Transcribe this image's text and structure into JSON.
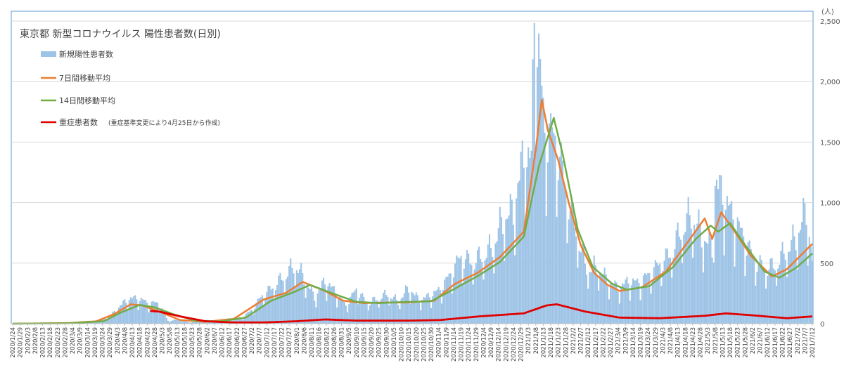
{
  "chart_data": {
    "type": "bar+line",
    "title": "東京都 新型コロナウイルス 陽性患者数(日別)",
    "y_unit": "(人)",
    "ylim": [
      0,
      2500
    ],
    "ytick_values": [
      0,
      500,
      1000,
      1500,
      2000,
      2500
    ],
    "ytick_labels": [
      "0",
      "500",
      "1,000",
      "1,500",
      "2,000",
      "2,500"
    ],
    "x_start": "2020-01-24",
    "x_end": "2021-07-12",
    "x_tick_labels": [
      "2020/1/24",
      "2020/1/29",
      "2020/2/3",
      "2020/2/8",
      "2020/2/13",
      "2020/2/18",
      "2020/2/23",
      "2020/2/28",
      "2020/3/4",
      "2020/3/9",
      "2020/3/14",
      "2020/3/19",
      "2020/3/24",
      "2020/3/29",
      "2020/4/3",
      "2020/4/8",
      "2020/4/13",
      "2020/4/18",
      "2020/4/23",
      "2020/4/28",
      "2020/5/3",
      "2020/5/8",
      "2020/5/13",
      "2020/5/18",
      "2020/5/23",
      "2020/5/28",
      "2020/6/2",
      "2020/6/7",
      "2020/6/12",
      "2020/6/17",
      "2020/6/22",
      "2020/6/27",
      "2020/7/2",
      "2020/7/7",
      "2020/7/12",
      "2020/7/17",
      "2020/7/22",
      "2020/7/27",
      "2020/8/1",
      "2020/8/6",
      "2020/8/11",
      "2020/8/16",
      "2020/8/21",
      "2020/8/26",
      "2020/8/31",
      "2020/9/5",
      "2020/9/10",
      "2020/9/15",
      "2020/9/20",
      "2020/9/25",
      "2020/9/30",
      "2020/10/5",
      "2020/10/10",
      "2020/10/15",
      "2020/10/20",
      "2020/10/25",
      "2020/10/30",
      "2020/11/4",
      "2020/11/9",
      "2020/11/14",
      "2020/11/19",
      "2020/11/24",
      "2020/11/29",
      "2020/12/4",
      "2020/12/9",
      "2020/12/14",
      "2020/12/19",
      "2020/12/24",
      "2020/12/29",
      "2021/1/3",
      "2021/1/8",
      "2021/1/13",
      "2021/1/18",
      "2021/1/23",
      "2021/1/28",
      "2021/2/2",
      "2021/2/7",
      "2021/2/12",
      "2021/2/17",
      "2021/2/22",
      "2021/2/27",
      "2021/3/4",
      "2021/3/9",
      "2021/3/14",
      "2021/3/19",
      "2021/3/24",
      "2021/3/29",
      "2021/4/3",
      "2021/4/8",
      "2021/4/13",
      "2021/4/18",
      "2021/4/23",
      "2021/4/28",
      "2021/5/3",
      "2021/5/8",
      "2021/5/13",
      "2021/5/18",
      "2021/5/23",
      "2021/5/28",
      "2021/6/2",
      "2021/6/7",
      "2021/6/12",
      "2021/6/17",
      "2021/6/22",
      "2021/6/27",
      "2021/7/2",
      "2021/7/7",
      "2021/7/12"
    ],
    "series": [
      {
        "name": "新規陽性患者数",
        "type": "bar",
        "color": "#9dc3e6",
        "points": [
          [
            "2020-01-24",
            1
          ],
          [
            "2020-02-15",
            3
          ],
          [
            "2020-03-01",
            4
          ],
          [
            "2020-03-15",
            8
          ],
          [
            "2020-03-25",
            41
          ],
          [
            "2020-03-31",
            78
          ],
          [
            "2020-04-05",
            143
          ],
          [
            "2020-04-11",
            197
          ],
          [
            "2020-04-17",
            201
          ],
          [
            "2020-04-24",
            161
          ],
          [
            "2020-05-01",
            165
          ],
          [
            "2020-05-07",
            23
          ],
          [
            "2020-05-14",
            30
          ],
          [
            "2020-05-21",
            11
          ],
          [
            "2020-05-28",
            15
          ],
          [
            "2020-06-04",
            28
          ],
          [
            "2020-06-11",
            22
          ],
          [
            "2020-06-18",
            41
          ],
          [
            "2020-06-25",
            48
          ],
          [
            "2020-07-02",
            107
          ],
          [
            "2020-07-09",
            224
          ],
          [
            "2020-07-16",
            286
          ],
          [
            "2020-07-23",
            366
          ],
          [
            "2020-07-31",
            463
          ],
          [
            "2020-08-06",
            360
          ],
          [
            "2020-08-13",
            206
          ],
          [
            "2020-08-20",
            339
          ],
          [
            "2020-08-27",
            250
          ],
          [
            "2020-09-03",
            141
          ],
          [
            "2020-09-10",
            276
          ],
          [
            "2020-09-17",
            163
          ],
          [
            "2020-09-24",
            195
          ],
          [
            "2020-10-01",
            235
          ],
          [
            "2020-10-08",
            172
          ],
          [
            "2020-10-15",
            284
          ],
          [
            "2020-10-22",
            185
          ],
          [
            "2020-10-29",
            221
          ],
          [
            "2020-11-05",
            269
          ],
          [
            "2020-11-12",
            393
          ],
          [
            "2020-11-19",
            534
          ],
          [
            "2020-11-26",
            481
          ],
          [
            "2020-12-03",
            533
          ],
          [
            "2020-12-10",
            602
          ],
          [
            "2020-12-17",
            822
          ],
          [
            "2020-12-24",
            888
          ],
          [
            "2020-12-31",
            1337
          ],
          [
            "2021-01-05",
            1278
          ],
          [
            "2021-01-07",
            2447
          ],
          [
            "2021-01-08",
            2520
          ],
          [
            "2021-01-09",
            2268
          ],
          [
            "2021-01-14",
            1502
          ],
          [
            "2021-01-21",
            1471
          ],
          [
            "2021-01-28",
            1064
          ],
          [
            "2021-02-04",
            734
          ],
          [
            "2021-02-11",
            434
          ],
          [
            "2021-02-18",
            445
          ],
          [
            "2021-02-25",
            340
          ],
          [
            "2021-03-04",
            279
          ],
          [
            "2021-03-11",
            335
          ],
          [
            "2021-03-18",
            323
          ],
          [
            "2021-03-25",
            394
          ],
          [
            "2021-04-01",
            475
          ],
          [
            "2021-04-08",
            545
          ],
          [
            "2021-04-15",
            729
          ],
          [
            "2021-04-22",
            861
          ],
          [
            "2021-04-29",
            698
          ],
          [
            "2021-05-06",
            591
          ],
          [
            "2021-05-08",
            1121
          ],
          [
            "2021-05-13",
            1010
          ],
          [
            "2021-05-20",
            843
          ],
          [
            "2021-05-27",
            684
          ],
          [
            "2021-06-03",
            508
          ],
          [
            "2021-06-10",
            440
          ],
          [
            "2021-06-17",
            452
          ],
          [
            "2021-06-24",
            570
          ],
          [
            "2021-07-01",
            673
          ],
          [
            "2021-07-08",
            896
          ],
          [
            "2021-07-12",
            502
          ]
        ]
      },
      {
        "name": "7日間移動平均",
        "type": "line",
        "color": "#ed7d31",
        "points": [
          [
            "2020-01-24",
            0
          ],
          [
            "2020-03-01",
            5
          ],
          [
            "2020-03-20",
            20
          ],
          [
            "2020-04-01",
            80
          ],
          [
            "2020-04-12",
            160
          ],
          [
            "2020-04-20",
            150
          ],
          [
            "2020-05-01",
            100
          ],
          [
            "2020-05-15",
            30
          ],
          [
            "2020-06-01",
            15
          ],
          [
            "2020-06-20",
            40
          ],
          [
            "2020-07-10",
            200
          ],
          [
            "2020-07-25",
            255
          ],
          [
            "2020-08-05",
            345
          ],
          [
            "2020-08-20",
            270
          ],
          [
            "2020-09-01",
            190
          ],
          [
            "2020-09-15",
            170
          ],
          [
            "2020-10-01",
            175
          ],
          [
            "2020-10-15",
            175
          ],
          [
            "2020-11-01",
            190
          ],
          [
            "2020-11-15",
            330
          ],
          [
            "2020-11-30",
            420
          ],
          [
            "2020-12-15",
            550
          ],
          [
            "2020-12-31",
            760
          ],
          [
            "2021-01-08",
            1440
          ],
          [
            "2021-01-12",
            1850
          ],
          [
            "2021-01-16",
            1600
          ],
          [
            "2021-01-23",
            1350
          ],
          [
            "2021-01-30",
            1000
          ],
          [
            "2021-02-07",
            650
          ],
          [
            "2021-02-16",
            420
          ],
          [
            "2021-02-25",
            320
          ],
          [
            "2021-03-05",
            270
          ],
          [
            "2021-03-20",
            300
          ],
          [
            "2021-04-05",
            430
          ],
          [
            "2021-04-20",
            680
          ],
          [
            "2021-05-01",
            870
          ],
          [
            "2021-05-06",
            700
          ],
          [
            "2021-05-12",
            920
          ],
          [
            "2021-05-20",
            780
          ],
          [
            "2021-06-01",
            560
          ],
          [
            "2021-06-15",
            390
          ],
          [
            "2021-06-25",
            450
          ],
          [
            "2021-07-12",
            660
          ]
        ]
      },
      {
        "name": "14日間移動平均",
        "type": "line",
        "color": "#70ad47",
        "points": [
          [
            "2020-01-24",
            0
          ],
          [
            "2020-03-01",
            3
          ],
          [
            "2020-03-25",
            20
          ],
          [
            "2020-04-05",
            90
          ],
          [
            "2020-04-18",
            155
          ],
          [
            "2020-04-28",
            135
          ],
          [
            "2020-05-10",
            80
          ],
          [
            "2020-05-25",
            25
          ],
          [
            "2020-06-10",
            18
          ],
          [
            "2020-06-28",
            50
          ],
          [
            "2020-07-15",
            190
          ],
          [
            "2020-07-30",
            260
          ],
          [
            "2020-08-10",
            320
          ],
          [
            "2020-08-25",
            250
          ],
          [
            "2020-09-10",
            180
          ],
          [
            "2020-09-25",
            170
          ],
          [
            "2020-10-10",
            178
          ],
          [
            "2020-10-30",
            185
          ],
          [
            "2020-11-15",
            290
          ],
          [
            "2020-12-01",
            400
          ],
          [
            "2020-12-15",
            510
          ],
          [
            "2020-12-31",
            720
          ],
          [
            "2021-01-10",
            1300
          ],
          [
            "2021-01-20",
            1700
          ],
          [
            "2021-01-26",
            1400
          ],
          [
            "2021-02-05",
            780
          ],
          [
            "2021-02-15",
            470
          ],
          [
            "2021-02-28",
            330
          ],
          [
            "2021-03-10",
            280
          ],
          [
            "2021-03-25",
            310
          ],
          [
            "2021-04-10",
            470
          ],
          [
            "2021-04-25",
            700
          ],
          [
            "2021-05-05",
            810
          ],
          [
            "2021-05-10",
            760
          ],
          [
            "2021-05-18",
            830
          ],
          [
            "2021-05-28",
            650
          ],
          [
            "2021-06-10",
            430
          ],
          [
            "2021-06-20",
            380
          ],
          [
            "2021-07-01",
            460
          ],
          [
            "2021-07-12",
            580
          ]
        ]
      },
      {
        "name": "重症患者数",
        "note": "(重症基準変更により4月25日から作成)",
        "type": "line",
        "color": "#e00000",
        "points": [
          [
            "2020-04-25",
            105
          ],
          [
            "2020-05-01",
            100
          ],
          [
            "2020-05-15",
            60
          ],
          [
            "2020-06-01",
            20
          ],
          [
            "2020-06-20",
            10
          ],
          [
            "2020-07-10",
            10
          ],
          [
            "2020-08-01",
            20
          ],
          [
            "2020-08-20",
            35
          ],
          [
            "2020-09-10",
            25
          ],
          [
            "2020-10-15",
            25
          ],
          [
            "2020-11-05",
            30
          ],
          [
            "2020-12-01",
            60
          ],
          [
            "2020-12-31",
            85
          ],
          [
            "2021-01-15",
            150
          ],
          [
            "2021-01-22",
            160
          ],
          [
            "2021-02-10",
            100
          ],
          [
            "2021-03-05",
            50
          ],
          [
            "2021-04-01",
            45
          ],
          [
            "2021-05-01",
            65
          ],
          [
            "2021-05-15",
            85
          ],
          [
            "2021-06-01",
            70
          ],
          [
            "2021-06-25",
            45
          ],
          [
            "2021-07-12",
            60
          ]
        ]
      }
    ]
  }
}
